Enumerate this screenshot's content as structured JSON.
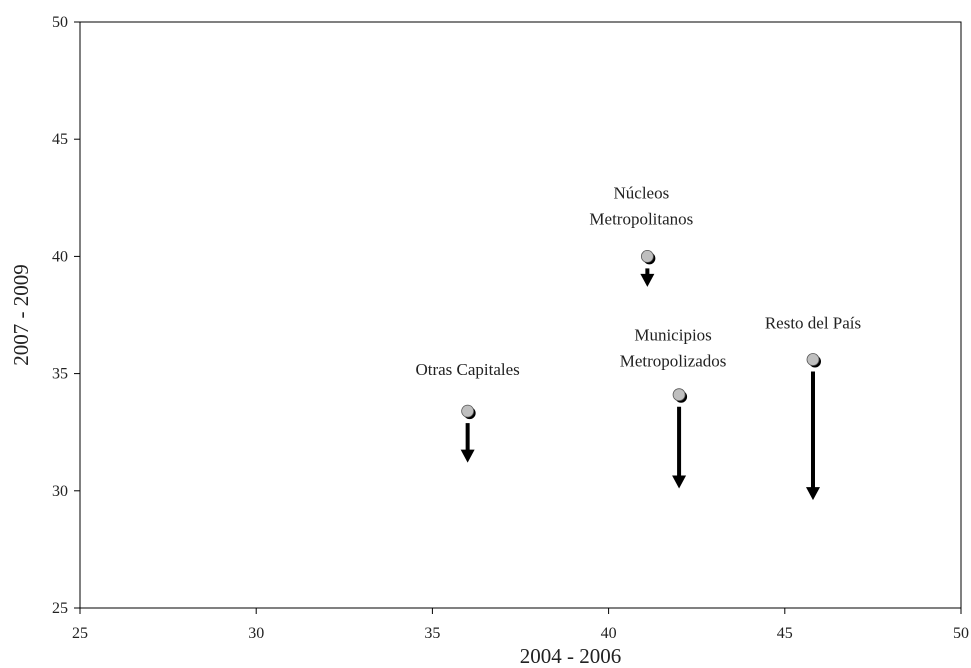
{
  "chart_data": {
    "type": "scatter",
    "title": "",
    "xlabel": "2004 - 2006",
    "ylabel": "2007 - 2009",
    "xlim": [
      25,
      50
    ],
    "ylim": [
      25,
      50
    ],
    "xticks": [
      "25",
      "30",
      "35",
      "40",
      "45",
      "50"
    ],
    "yticks": [
      "25",
      "30",
      "35",
      "40",
      "45",
      "50"
    ],
    "grid": false,
    "legend": "none",
    "points": [
      {
        "label": "Otras Capitales",
        "x": 36.0,
        "y": 33.4,
        "arrow_to": 31.2
      },
      {
        "label": "Núcleos Metropolitanos",
        "x": 41.1,
        "y": 40.0,
        "arrow_to": 38.7
      },
      {
        "label": "Municipios Metropolizados",
        "x": 42.0,
        "y": 34.1,
        "arrow_to": 30.1
      },
      {
        "label": "Resto del País",
        "x": 45.8,
        "y": 35.6,
        "arrow_to": 29.6
      }
    ],
    "colors": {
      "marker_fill": "#bfbfbf",
      "marker_shadow": "#000000",
      "arrow": "#000000",
      "axis": "#000000"
    }
  }
}
